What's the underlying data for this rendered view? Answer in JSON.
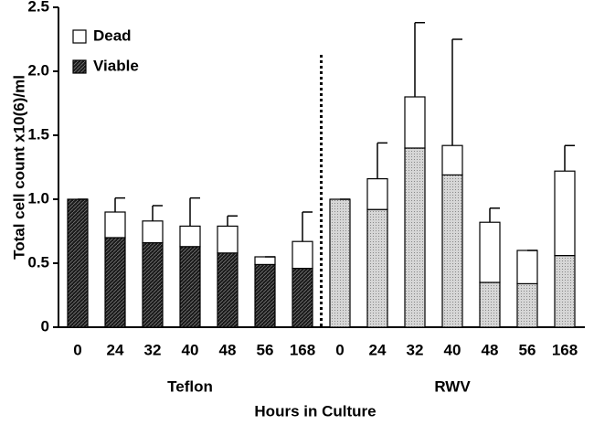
{
  "chart_data": {
    "type": "stacked_bar",
    "y_label": "Total cell count x10(6)/ml",
    "x_label": "Hours in Culture",
    "categories": [
      "0",
      "24",
      "32",
      "40",
      "48",
      "56",
      "168",
      "0",
      "24",
      "32",
      "40",
      "48",
      "56",
      "168"
    ],
    "groups": [
      {
        "name": "Teflon",
        "color": "#3c3c3c"
      },
      {
        "name": "RWV",
        "color": "#c8c8c8"
      }
    ],
    "series": [
      {
        "name": "Viable",
        "color": "#3c3c3c",
        "values": [
          1.0,
          0.7,
          0.66,
          0.63,
          0.58,
          0.49,
          0.46,
          1.0,
          0.92,
          1.4,
          1.19,
          0.35,
          0.34,
          0.56
        ]
      },
      {
        "name": "Dead",
        "color": "#ffffff",
        "values": [
          0,
          0.2,
          0.17,
          0.16,
          0.21,
          0.06,
          0.21,
          0,
          0.24,
          0.4,
          0.23,
          0.47,
          0.26,
          0.66
        ],
        "errors": [
          0,
          0.11,
          0.12,
          0.22,
          0.08,
          0,
          0.23,
          0,
          0.28,
          0.58,
          0.83,
          0.11,
          0,
          0.2
        ]
      }
    ],
    "ylim": [
      0,
      2.5
    ],
    "yticks": [
      0,
      0.5,
      {
        "value": 1,
        "label": "1.0"
      },
      {
        "value": 1.5,
        "label": "1.5"
      },
      {
        "value": 2,
        "label": "2.0"
      },
      {
        "value": 2.5,
        "label": "2.5"
      }
    ],
    "legend": "upper left"
  }
}
